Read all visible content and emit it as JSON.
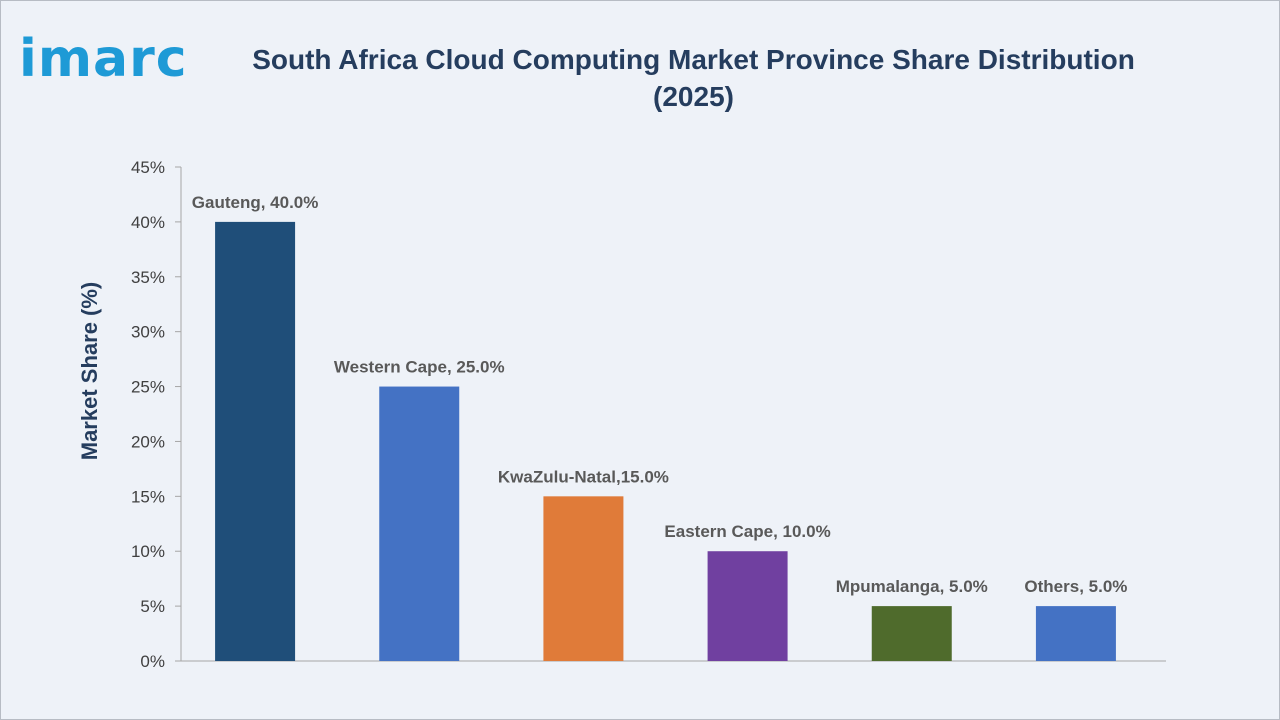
{
  "logo": {
    "text": "imarc"
  },
  "chart_data": {
    "type": "bar",
    "title": "South Africa Cloud Computing Market Province Share Distribution (2025)",
    "xlabel": "",
    "ylabel": "Market Share (%)",
    "ylim": [
      0,
      45
    ],
    "yticks": [
      "0%",
      "5%",
      "10%",
      "15%",
      "20%",
      "25%",
      "30%",
      "35%",
      "40%",
      "45%"
    ],
    "categories": [
      "Gauteng",
      "Western Cape",
      "KwaZulu-Natal",
      "Eastern Cape",
      "Mpumalanga",
      "Others"
    ],
    "values": [
      40,
      25,
      15,
      10,
      5,
      5
    ],
    "data_labels": [
      "Gauteng, 40.0%",
      "Western Cape, 25.0%",
      "KwaZulu-Natal,15.0%",
      "Eastern Cape, 10.0%",
      "Mpumalanga, 5.0%",
      "Others, 5.0%"
    ],
    "colors": [
      "#1f4e79",
      "#4472c4",
      "#e07b39",
      "#7040a0",
      "#4f6b2c",
      "#4472c4"
    ],
    "grid": false,
    "legend": "none"
  }
}
